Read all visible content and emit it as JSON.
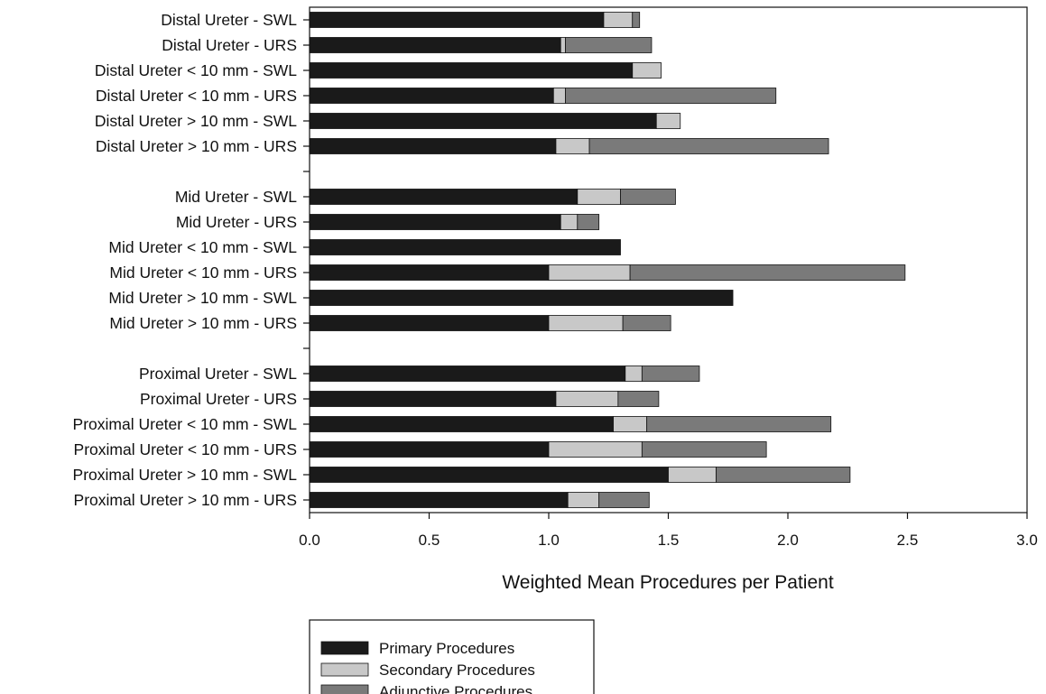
{
  "chart_data": {
    "type": "bar",
    "orientation": "horizontal",
    "stacked": true,
    "xlabel": "Weighted Mean Procedures per Patient",
    "ylabel": "",
    "xlim": [
      0,
      3.0
    ],
    "x_ticks": [
      "0.0",
      "0.5",
      "1.0",
      "1.5",
      "2.0",
      "2.5",
      "3.0"
    ],
    "grid": false,
    "legend_position": "bottom",
    "categories": [
      "Distal Ureter  - SWL",
      "Distal Ureter  - URS",
      "Distal Ureter  < 10 mm - SWL",
      "Distal Ureter  < 10 mm - URS",
      "Distal Ureter  > 10 mm - SWL",
      "Distal Ureter  > 10 mm - URS",
      "",
      "Mid Ureter - SWL",
      "Mid Ureter - URS",
      "Mid Ureter < 10 mm - SWL",
      "Mid Ureter < 10 mm - URS",
      "Mid Ureter > 10 mm - SWL",
      "Mid Ureter > 10 mm - URS",
      "",
      "Proximal Ureter - SWL",
      "Proximal Ureter - URS",
      "Proximal Ureter < 10 mm - SWL",
      "Proximal Ureter < 10 mm - URS",
      "Proximal Ureter > 10 mm - SWL",
      "Proximal Ureter > 10 mm - URS"
    ],
    "series": [
      {
        "name": "Primary Procedures",
        "color": "#1a1a1a",
        "values": [
          1.23,
          1.05,
          1.35,
          1.02,
          1.45,
          1.03,
          null,
          1.12,
          1.05,
          1.3,
          1.0,
          1.77,
          1.0,
          null,
          1.32,
          1.03,
          1.27,
          1.0,
          1.5,
          1.08
        ]
      },
      {
        "name": "Secondary Procedures",
        "color": "#c8c8c8",
        "values": [
          0.12,
          0.02,
          0.12,
          0.05,
          0.1,
          0.14,
          null,
          0.18,
          0.07,
          0.0,
          0.34,
          0.0,
          0.31,
          null,
          0.07,
          0.26,
          0.14,
          0.39,
          0.2,
          0.13
        ]
      },
      {
        "name": "Adjunctive Procedures",
        "color": "#7a7a7a",
        "values": [
          0.03,
          0.36,
          0.0,
          0.88,
          0.0,
          1.0,
          null,
          0.23,
          0.09,
          0.0,
          1.15,
          0.0,
          0.2,
          null,
          0.24,
          0.17,
          0.77,
          0.52,
          0.56,
          0.21
        ]
      }
    ]
  }
}
